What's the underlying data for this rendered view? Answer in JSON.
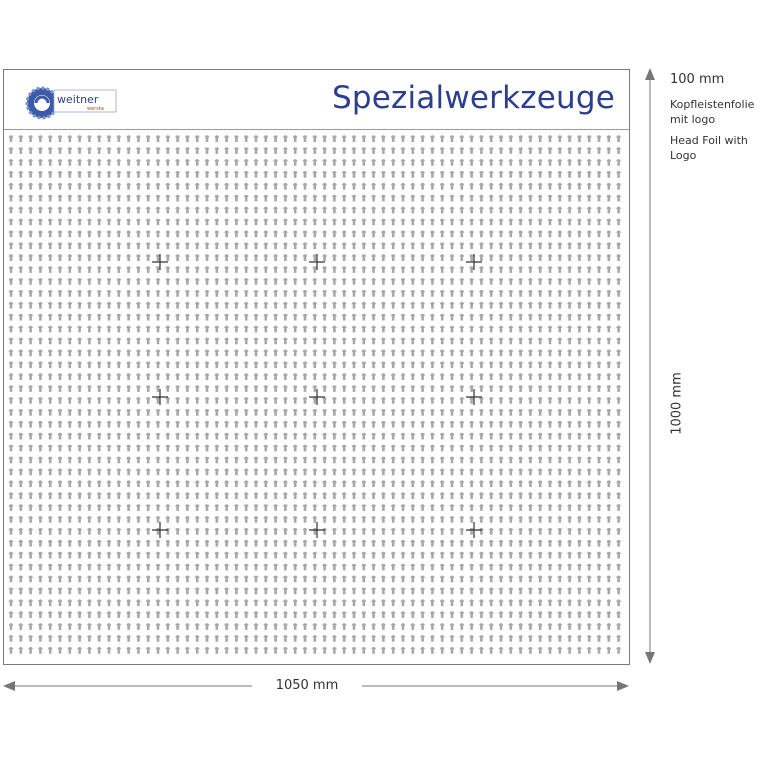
{
  "header": {
    "title": "Spezialwerkzeuge",
    "logo_text": "weitner",
    "logo_subtext": "wersta",
    "title_color": "#2b3f8f"
  },
  "dimensions": {
    "header_height": "100 mm",
    "total_height": "1000 mm",
    "width": "1050 mm"
  },
  "annotations": {
    "head_foil_de": "Kopfleistenfolie mit logo",
    "head_foil_en": "Head Foil with Logo"
  },
  "grid": {
    "hole_color": "#a8a8a8",
    "crosshair_color": "#333333",
    "crosshair_rows": 3,
    "crosshair_cols": 3
  }
}
